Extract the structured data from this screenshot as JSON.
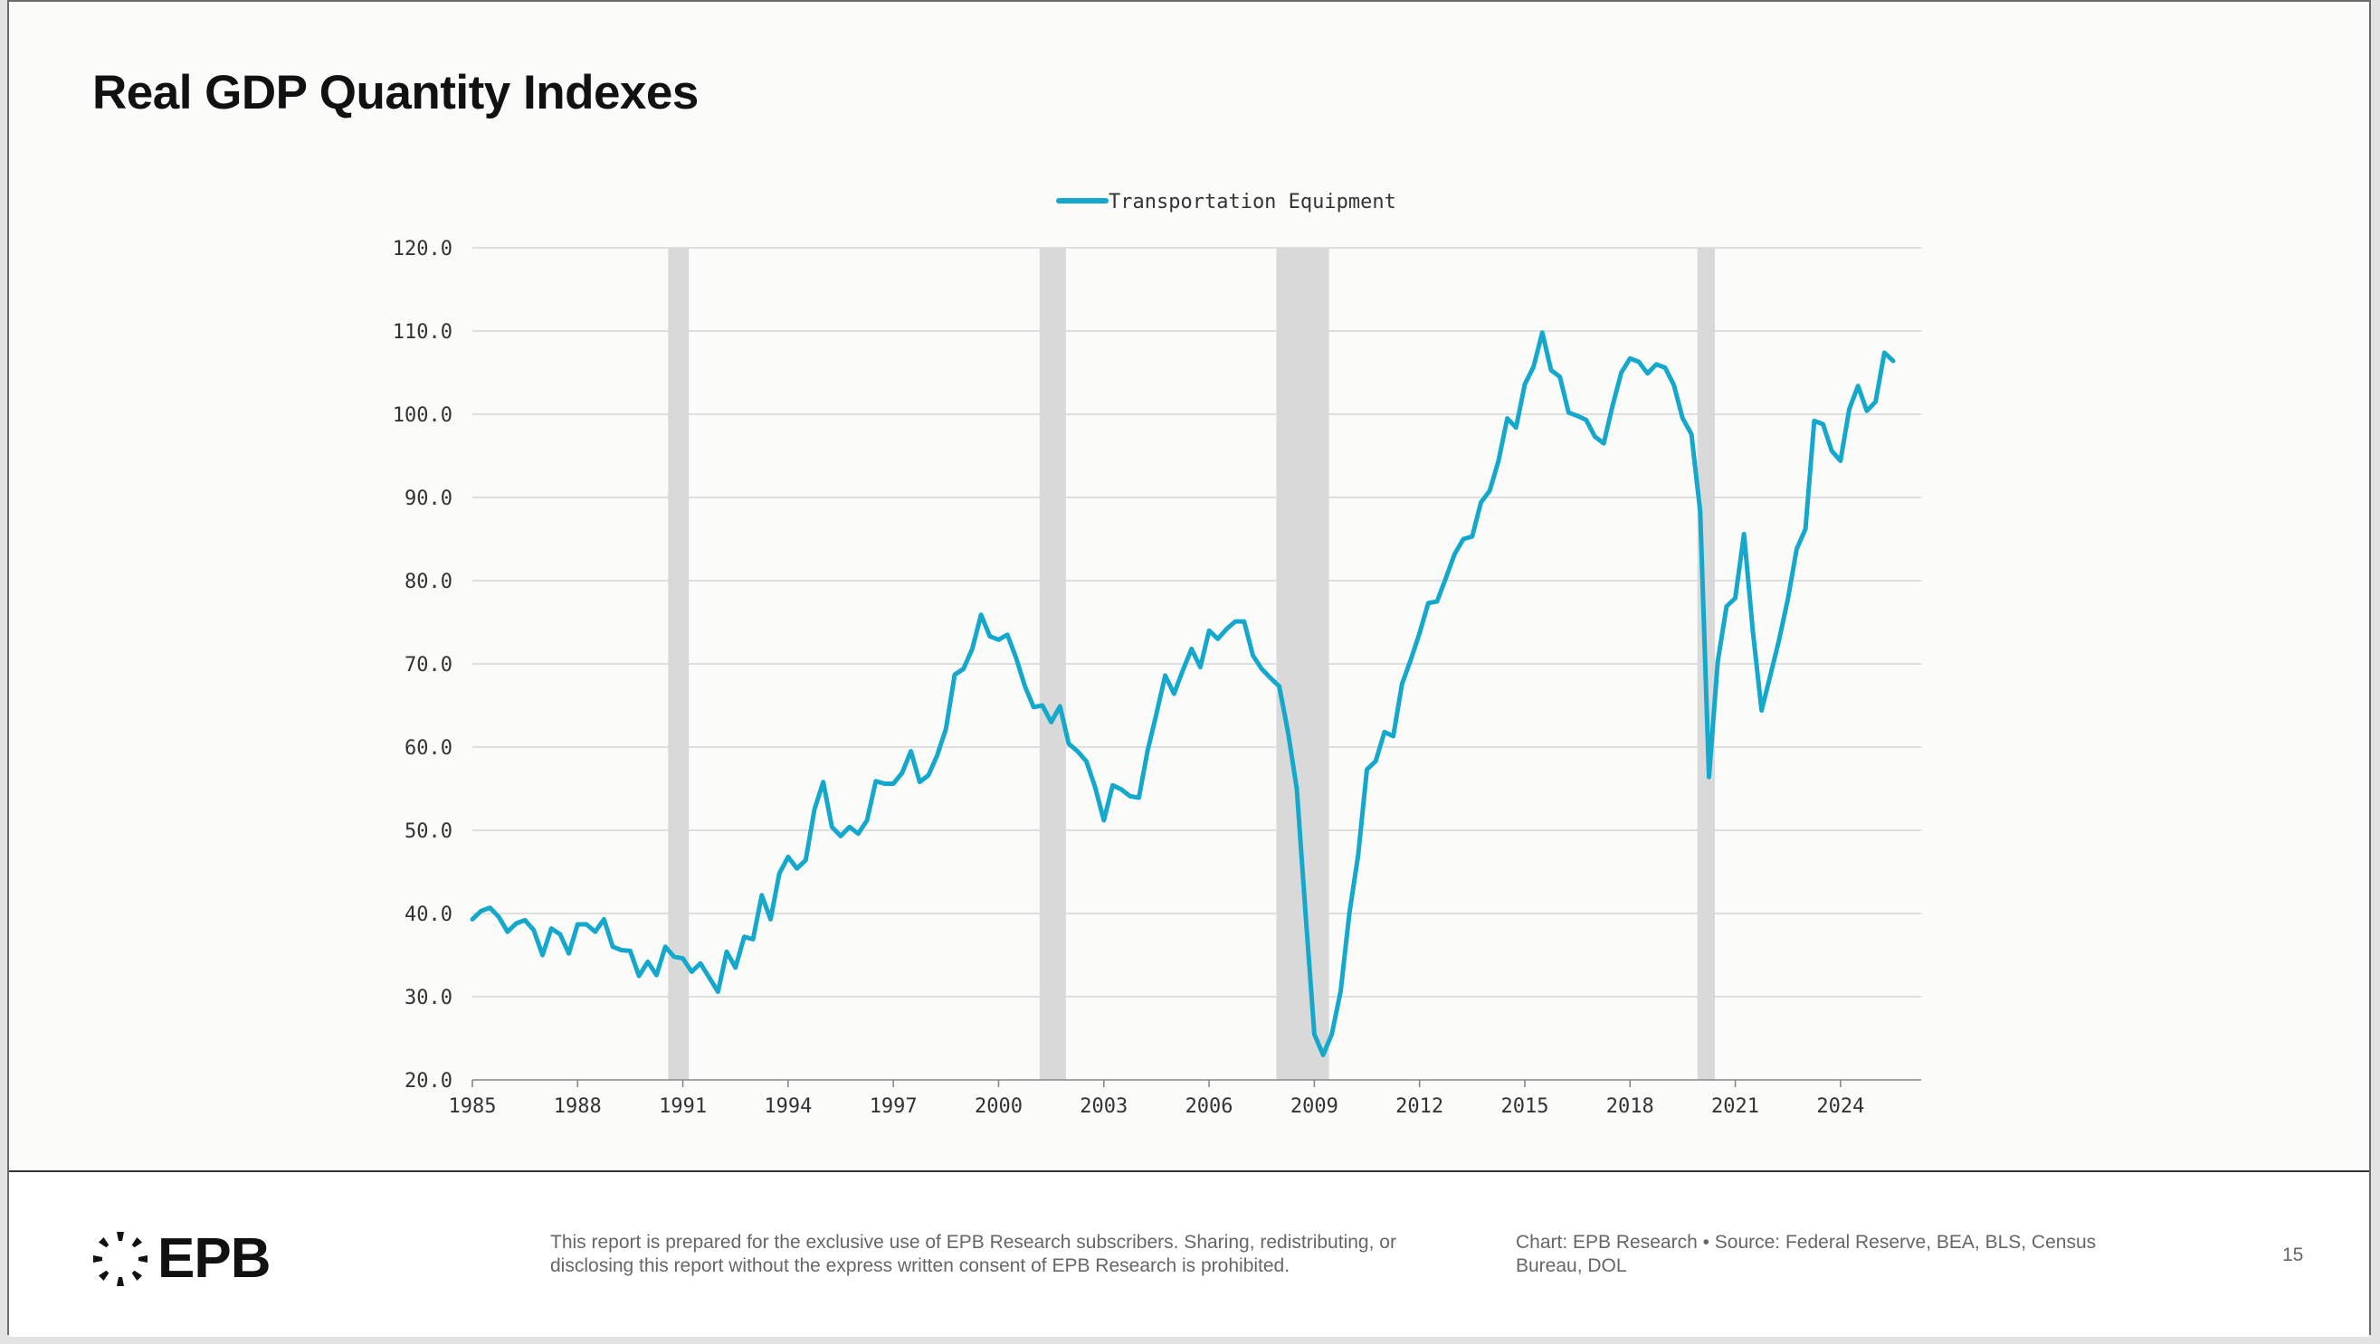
{
  "page": {
    "title": "Real GDP Quantity Indexes",
    "page_number": "15"
  },
  "footer": {
    "logo_text": "EPB",
    "disclaimer": "This report is prepared for the exclusive use of EPB Research subscribers. Sharing, redistributing, or disclosing this report without the express written consent of EPB Research is prohibited.",
    "source": "Chart: EPB Research  •  Source: Federal Reserve, BEA, BLS, Census Bureau, DOL"
  },
  "colors": {
    "series": "#13a8cc",
    "recession": "#d9d9d9",
    "grid": "#d6d6d6"
  },
  "chart_data": {
    "type": "line",
    "title": "Real GDP Quantity Indexes",
    "xlabel": "",
    "ylabel": "",
    "xlim": [
      1985,
      2026.3
    ],
    "ylim": [
      20,
      120
    ],
    "grid": true,
    "legend_position": "top-center",
    "x_ticks": [
      "1985",
      "1988",
      "1991",
      "1994",
      "1997",
      "2000",
      "2003",
      "2006",
      "2009",
      "2012",
      "2015",
      "2018",
      "2021",
      "2024"
    ],
    "y_ticks": [
      "20.0",
      "30.0",
      "40.0",
      "50.0",
      "60.0",
      "70.0",
      "80.0",
      "90.0",
      "100.0",
      "110.0",
      "120.0"
    ],
    "recessions": [
      [
        1990.58,
        1991.17
      ],
      [
        2001.17,
        2001.92
      ],
      [
        2007.92,
        2009.42
      ],
      [
        2019.92,
        2020.42
      ]
    ],
    "series": [
      {
        "name": "Transportation Equipment",
        "x_start": 1985.0,
        "x_step": 0.25,
        "values": [
          39.3,
          40.3,
          40.7,
          39.6,
          37.8,
          38.8,
          39.2,
          38.0,
          35.0,
          38.2,
          37.5,
          35.2,
          38.7,
          38.7,
          37.8,
          39.3,
          36.0,
          35.6,
          35.5,
          32.5,
          34.2,
          32.6,
          36.0,
          34.8,
          34.6,
          33.0,
          34.0,
          32.3,
          30.6,
          35.4,
          33.5,
          37.2,
          36.9,
          42.2,
          39.3,
          44.8,
          46.8,
          45.4,
          46.4,
          52.5,
          55.8,
          50.4,
          49.3,
          50.4,
          49.6,
          51.2,
          55.9,
          55.6,
          55.6,
          56.9,
          59.5,
          55.8,
          56.6,
          59.0,
          62.2,
          68.7,
          69.4,
          71.8,
          75.9,
          73.3,
          72.9,
          73.5,
          70.7,
          67.3,
          64.8,
          65.0,
          63.0,
          64.9,
          60.4,
          59.5,
          58.3,
          55.2,
          51.2,
          55.4,
          54.9,
          54.1,
          53.9,
          59.6,
          64.0,
          68.6,
          66.4,
          69.2,
          71.8,
          69.6,
          74.0,
          73.0,
          74.2,
          75.1,
          75.1,
          71.0,
          69.4,
          68.3,
          67.3,
          61.8,
          55.0,
          40.0,
          25.5,
          23.0,
          25.5,
          30.6,
          40.0,
          47.0,
          57.3,
          58.3,
          61.8,
          61.3,
          67.6,
          70.5,
          73.7,
          77.3,
          77.5,
          80.3,
          83.2,
          85.0,
          85.3,
          89.4,
          90.8,
          94.4,
          99.5,
          98.4,
          103.6,
          105.7,
          109.8,
          105.3,
          104.5,
          100.2,
          99.8,
          99.3,
          97.3,
          96.5,
          101.0,
          105.0,
          106.7,
          106.3,
          104.9,
          106.0,
          105.6,
          103.5,
          99.5,
          97.6,
          88.3,
          56.4,
          70.3,
          76.9,
          77.9,
          85.6,
          74.0,
          64.4,
          68.6,
          72.9,
          77.8,
          83.8,
          86.2,
          99.2,
          98.8,
          95.6,
          94.4,
          100.6,
          103.4,
          100.4,
          101.5,
          107.4,
          106.4
        ]
      }
    ]
  }
}
